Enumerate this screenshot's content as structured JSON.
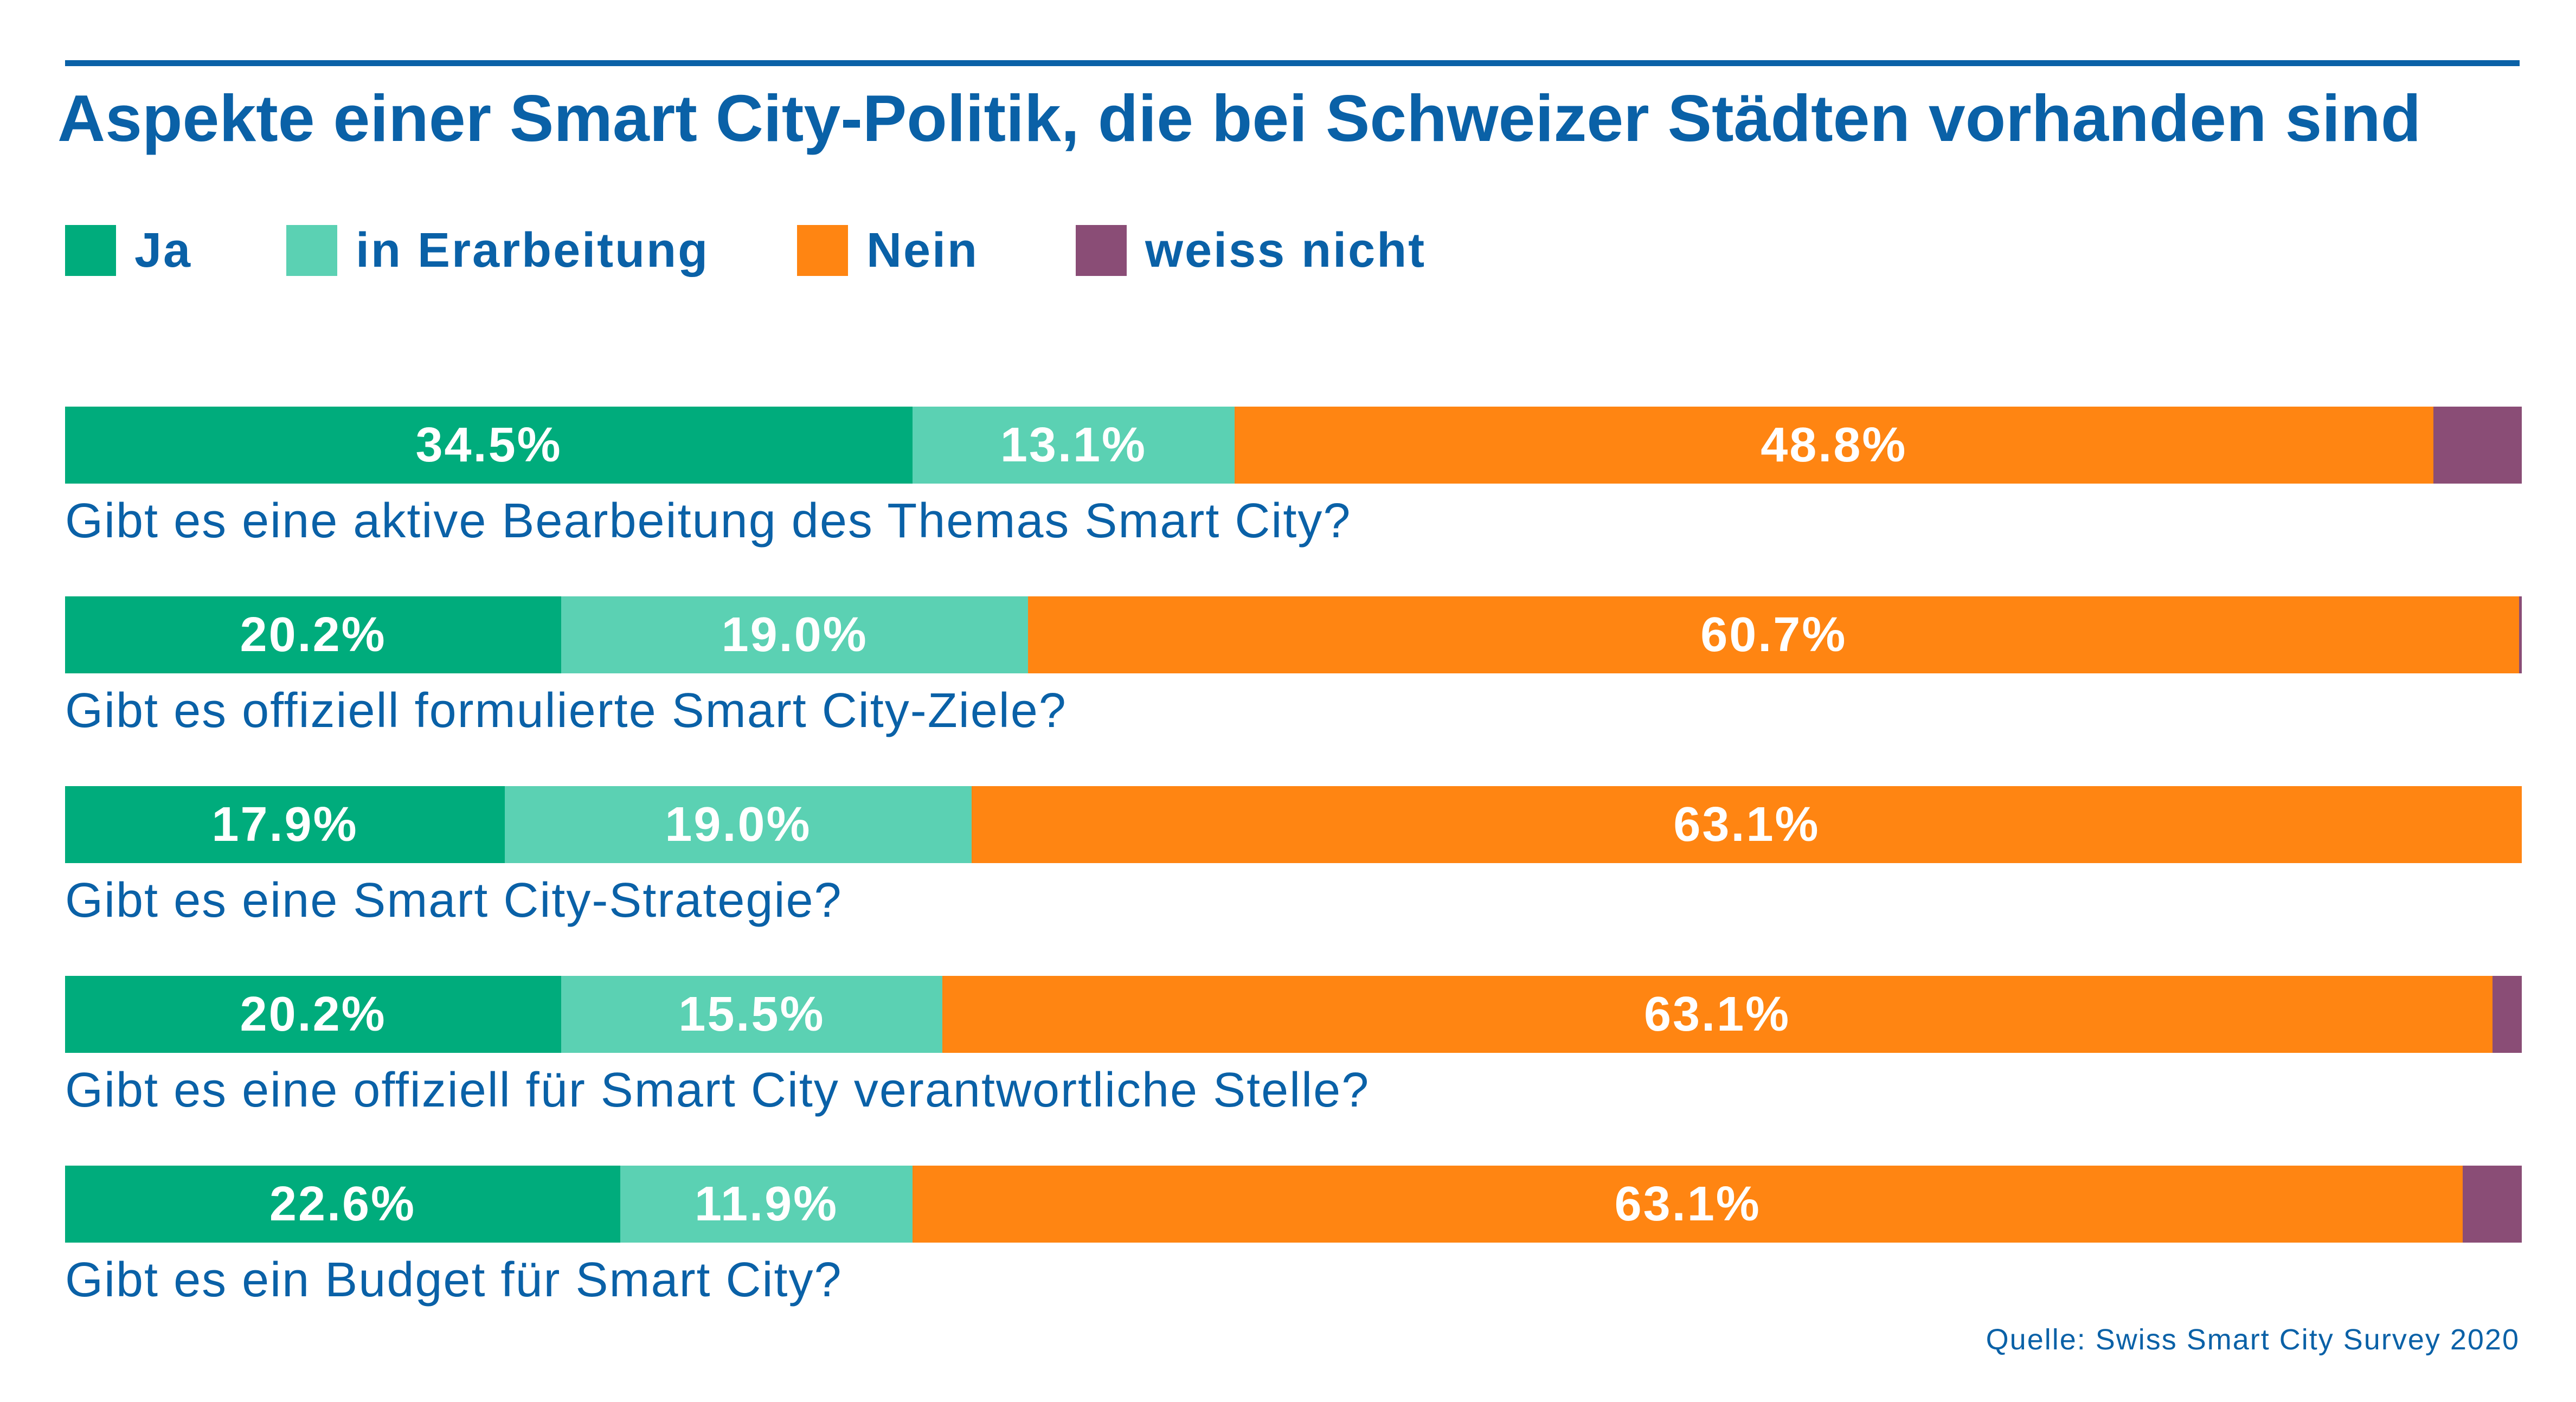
{
  "chart_data": {
    "type": "bar",
    "orientation": "horizontal",
    "stacked": true,
    "title": "Aspekte einer Smart City-Politik, die bei Schweizer Städten vorhanden sind",
    "legend_position": "top-left",
    "categories": [
      "Gibt es eine aktive Bearbeitung des Themas Smart City?",
      "Gibt es offiziell formulierte Smart City-Ziele?",
      "Gibt es eine Smart City-Strategie?",
      "Gibt es eine offiziell für Smart City verantwortliche Stelle?",
      "Gibt es ein Budget für Smart City?"
    ],
    "series": [
      {
        "name": "Ja",
        "color": "#00AC7C",
        "values": [
          34.5,
          20.2,
          17.9,
          20.2,
          22.6
        ],
        "labels": [
          "34.5%",
          "20.2%",
          "17.9%",
          "20.2%",
          "22.6%"
        ]
      },
      {
        "name": "in Erarbeitung",
        "color": "#5BD1B3",
        "values": [
          13.1,
          19.0,
          19.0,
          15.5,
          11.9
        ],
        "labels": [
          "13.1%",
          "19.0%",
          "19.0%",
          "15.5%",
          "11.9%"
        ]
      },
      {
        "name": "Nein",
        "color": "#FF8512",
        "values": [
          48.8,
          60.7,
          63.1,
          63.1,
          63.1
        ],
        "labels": [
          "48.8%",
          "60.7%",
          "63.1%",
          "63.1%",
          "63.1%"
        ]
      },
      {
        "name": "weiss nicht",
        "color": "#8A4D76",
        "values": [
          3.6,
          0.1,
          0.0,
          1.2,
          2.4
        ],
        "labels": [
          "",
          "",
          "",
          "",
          ""
        ]
      }
    ],
    "xlim": [
      0,
      100
    ],
    "grid": false
  },
  "source": "Quelle: Swiss Smart City Survey 2020"
}
